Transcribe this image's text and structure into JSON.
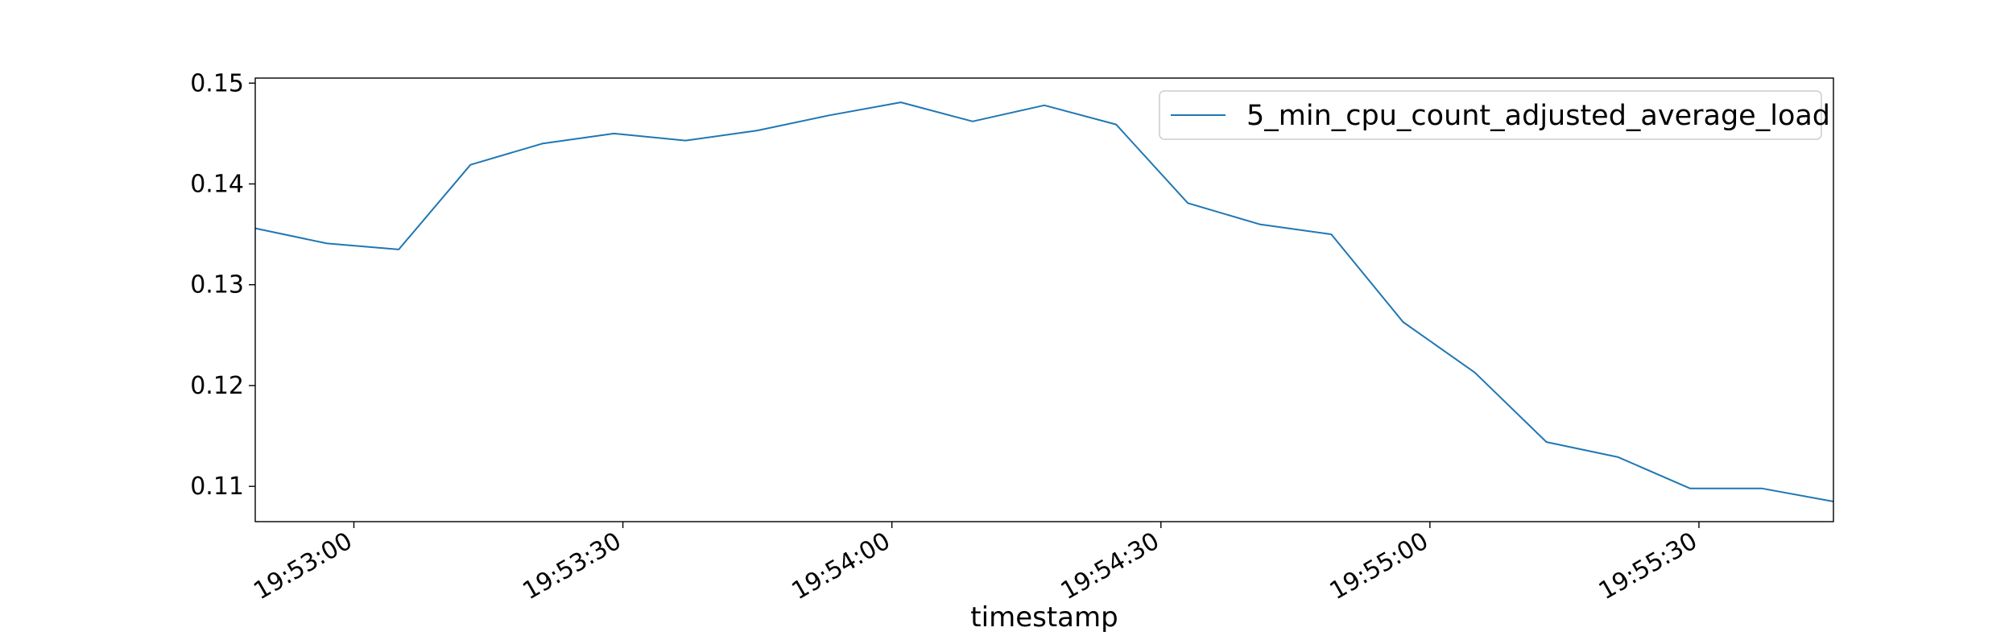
{
  "chart_data": {
    "type": "line",
    "xlabel": "timestamp",
    "ylabel": "",
    "ylim": [
      0.1065,
      0.1505
    ],
    "y_ticks": [
      0.11,
      0.12,
      0.13,
      0.14,
      0.15
    ],
    "y_tick_labels": [
      "0.11",
      "0.12",
      "0.13",
      "0.14",
      "0.15"
    ],
    "xlim": [
      "19:52:49",
      "19:55:45"
    ],
    "x_ticks": [
      "19:53:00",
      "19:53:30",
      "19:54:00",
      "19:54:30",
      "19:55:00",
      "19:55:30"
    ],
    "x_tick_labels": [
      "19:53:00",
      "19:53:30",
      "19:54:00",
      "19:54:30",
      "19:55:00",
      "19:55:30"
    ],
    "grid": false,
    "legend": "top-right",
    "series": [
      {
        "name": "5_min_cpu_count_adjusted_average_load",
        "color": "#1f77b4",
        "x": [
          "19:52:49",
          "19:52:57",
          "19:53:05",
          "19:53:13",
          "19:53:21",
          "19:53:29",
          "19:53:37",
          "19:53:45",
          "19:53:53",
          "19:54:01",
          "19:54:09",
          "19:54:17",
          "19:54:25",
          "19:54:33",
          "19:54:41",
          "19:54:49",
          "19:54:57",
          "19:55:05",
          "19:55:13",
          "19:55:21",
          "19:55:29",
          "19:55:37",
          "19:55:45"
        ],
        "values": [
          0.1356,
          0.1341,
          0.1335,
          0.1419,
          0.144,
          0.145,
          0.1443,
          0.1453,
          0.1468,
          0.1481,
          0.1462,
          0.1478,
          0.1459,
          0.1381,
          0.136,
          0.135,
          0.1263,
          0.1213,
          0.1144,
          0.1129,
          0.1098,
          0.1098,
          0.1085
        ]
      }
    ]
  }
}
